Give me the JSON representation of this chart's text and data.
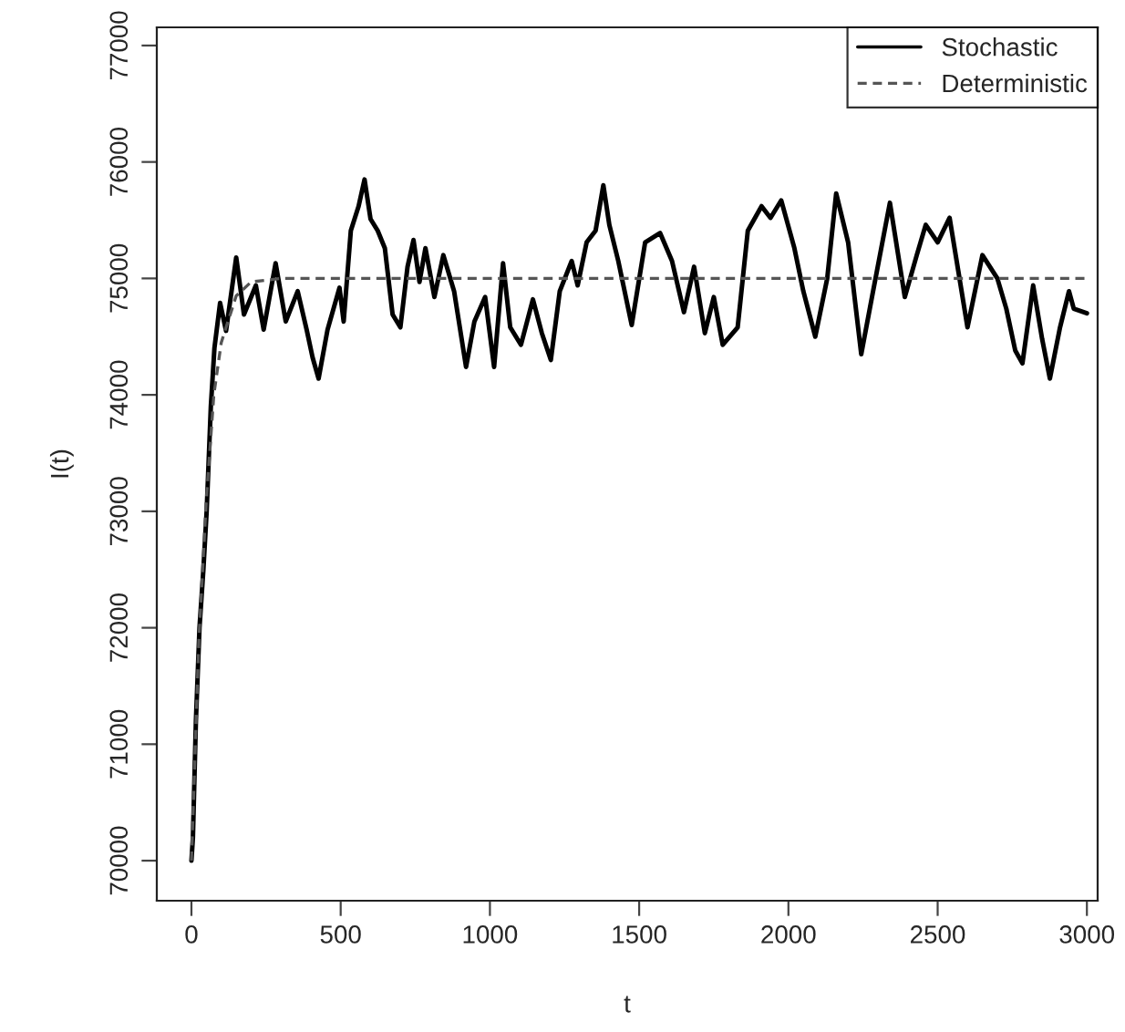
{
  "chart_data": {
    "type": "line",
    "xlabel": "t",
    "ylabel": "I(t)",
    "xlim": [
      -116,
      3036
    ],
    "xticks": [
      0,
      500,
      1000,
      1500,
      2000,
      2500,
      3000
    ],
    "ylim": [
      69656,
      77156
    ],
    "yticks": [
      70000,
      71000,
      72000,
      73000,
      74000,
      75000,
      76000,
      77000
    ],
    "grid": false,
    "legend": "top right",
    "series": [
      {
        "name": "Stochastic",
        "color": "#000000",
        "line_style": "solid",
        "x": [
          0,
          5,
          15,
          27,
          40,
          51,
          65,
          77,
          96,
          116,
          150,
          176,
          216,
          242,
          282,
          316,
          356,
          386,
          406,
          426,
          456,
          496,
          510,
          534,
          560,
          580,
          600,
          624,
          648,
          674,
          700,
          724,
          744,
          764,
          784,
          814,
          844,
          880,
          920,
          948,
          984,
          1014,
          1044,
          1068,
          1104,
          1144,
          1174,
          1204,
          1234,
          1274,
          1294,
          1324,
          1354,
          1380,
          1400,
          1430,
          1475,
          1520,
          1570,
          1610,
          1650,
          1684,
          1720,
          1750,
          1780,
          1830,
          1864,
          1910,
          1940,
          1976,
          2020,
          2050,
          2090,
          2130,
          2160,
          2200,
          2244,
          2280,
          2340,
          2390,
          2430,
          2460,
          2500,
          2540,
          2570,
          2600,
          2650,
          2700,
          2730,
          2760,
          2784,
          2820,
          2850,
          2876,
          2910,
          2940,
          2956,
          3000
        ],
        "values": [
          70000,
          70200,
          71200,
          72000,
          72500,
          73000,
          73900,
          74400,
          74790,
          74550,
          75180,
          74690,
          74940,
          74560,
          75130,
          74630,
          74890,
          74560,
          74320,
          74140,
          74560,
          74920,
          74630,
          75410,
          75620,
          75850,
          75510,
          75410,
          75260,
          74690,
          74580,
          75100,
          75330,
          74970,
          75260,
          74840,
          75200,
          74890,
          74240,
          74630,
          74840,
          74240,
          75130,
          74580,
          74430,
          74820,
          74530,
          74300,
          74890,
          75150,
          74940,
          75310,
          75410,
          75800,
          75460,
          75150,
          74600,
          75310,
          75390,
          75150,
          74710,
          75100,
          74530,
          74840,
          74430,
          74580,
          75410,
          75620,
          75520,
          75670,
          75260,
          74890,
          74500,
          75000,
          75730,
          75310,
          74350,
          74840,
          75650,
          74840,
          75200,
          75460,
          75310,
          75520,
          75050,
          74580,
          75200,
          75000,
          74740,
          74380,
          74270,
          74940,
          74480,
          74140,
          74580,
          74890,
          74740,
          74700
        ]
      },
      {
        "name": "Deterministic",
        "color": "#555555",
        "line_style": "dashed",
        "x": [
          0,
          25,
          50,
          75,
          100,
          150,
          200,
          300,
          3000
        ],
        "values": [
          70000,
          71900,
          73100,
          74000,
          74450,
          74850,
          74970,
          75000,
          75000
        ]
      }
    ]
  }
}
